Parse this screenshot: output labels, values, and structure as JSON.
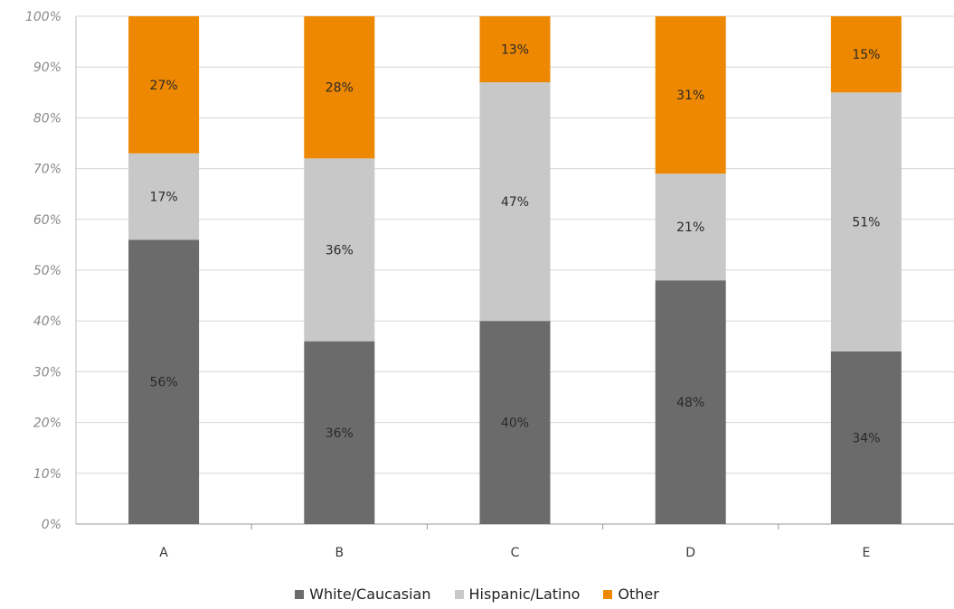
{
  "chart_data": {
    "type": "bar",
    "stacked": true,
    "percent": true,
    "categories": [
      "A",
      "B",
      "C",
      "D",
      "E"
    ],
    "series": [
      {
        "name": "White/Caucasian",
        "values": [
          56,
          36,
          40,
          48,
          34
        ],
        "labels": [
          "56%",
          "36%",
          "40%",
          "48%",
          "34%"
        ],
        "color": "#6b6b6b"
      },
      {
        "name": "Hispanic/Latino",
        "values": [
          17,
          36,
          47,
          21,
          51
        ],
        "labels": [
          "17%",
          "36%",
          "47%",
          "21%",
          "51%"
        ],
        "color": "#c8c8c8"
      },
      {
        "name": "Other",
        "values": [
          27,
          28,
          13,
          31,
          15
        ],
        "labels": [
          "27%",
          "28%",
          "13%",
          "31%",
          "15%"
        ],
        "color": "#ee8800"
      }
    ],
    "ylim": [
      0,
      100
    ],
    "yticks": [
      0,
      10,
      20,
      30,
      40,
      50,
      60,
      70,
      80,
      90,
      100
    ],
    "ytick_labels": [
      "0%",
      "10%",
      "20%",
      "30%",
      "40%",
      "50%",
      "60%",
      "70%",
      "80%",
      "90%",
      "100%"
    ],
    "grid": true,
    "legend_position": "bottom",
    "gridline_color": "#d6d6d6"
  }
}
